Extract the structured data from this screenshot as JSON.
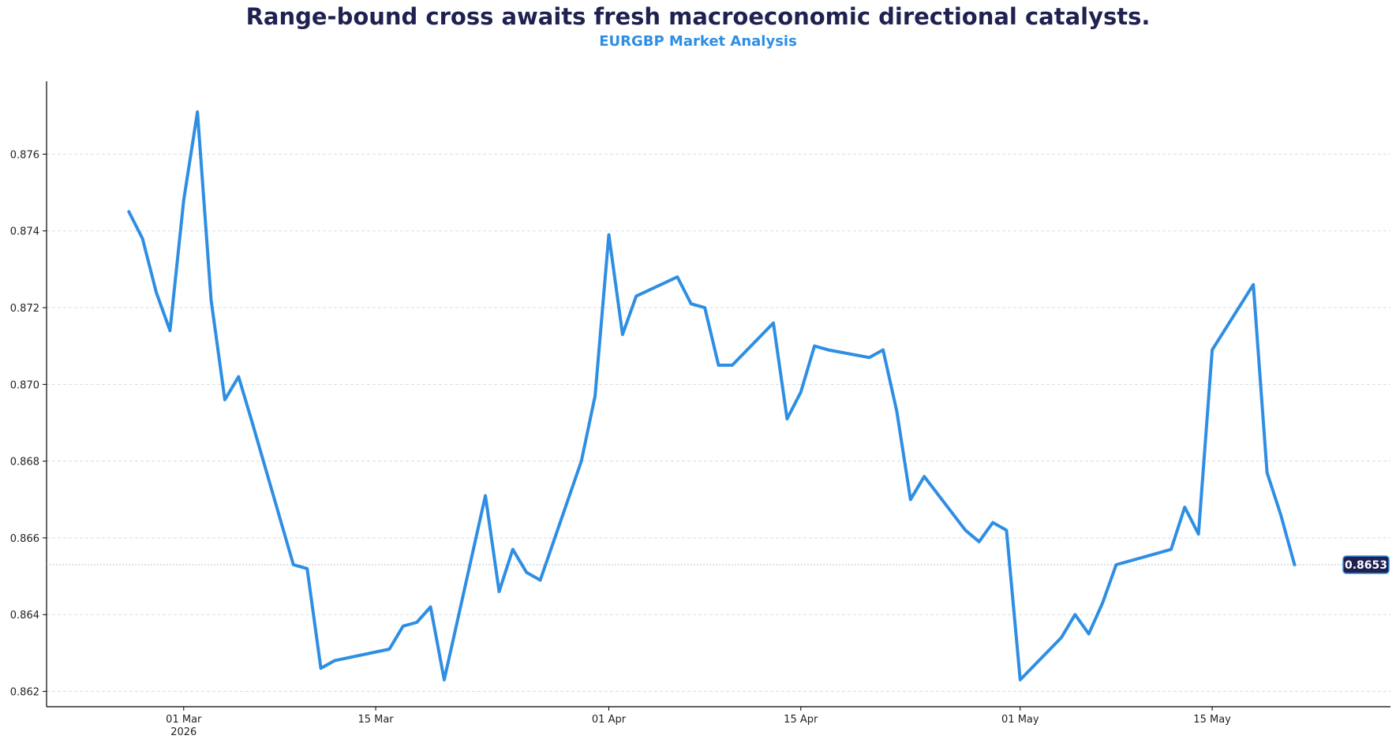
{
  "chart_data": {
    "type": "line",
    "title": "Range-bound cross awaits fresh macroeconomic directional catalysts.",
    "subtitle": "EURGBP Market Analysis",
    "xlabel": "",
    "ylabel": "",
    "xlim": [
      "2026-02-19",
      "2026-05-28"
    ],
    "ylim": [
      0.8616,
      0.8779
    ],
    "grid": {
      "y": true,
      "x": false
    },
    "y_ticks": [
      "0.862",
      "0.864",
      "0.866",
      "0.868",
      "0.870",
      "0.872",
      "0.874",
      "0.876"
    ],
    "x_ticks": [
      {
        "date": "2026-03-01",
        "label": "01 Mar",
        "sublabel": "2026"
      },
      {
        "date": "2026-03-15",
        "label": "15 Mar",
        "sublabel": ""
      },
      {
        "date": "2026-04-01",
        "label": "01 Apr",
        "sublabel": ""
      },
      {
        "date": "2026-04-15",
        "label": "15 Apr",
        "sublabel": ""
      },
      {
        "date": "2026-05-01",
        "label": "01 May",
        "sublabel": ""
      },
      {
        "date": "2026-05-15",
        "label": "15 May",
        "sublabel": ""
      }
    ],
    "last_value_label": "0.8653",
    "colors": {
      "line": "#2e8ee3",
      "badge": "#1f2150",
      "title": "#1f2150",
      "subtitle": "#2e8ee3"
    },
    "series": [
      {
        "x": [
          "2026-02-25",
          "2026-02-26",
          "2026-02-27",
          "2026-02-28",
          "2026-03-01",
          "2026-03-02",
          "2026-03-03",
          "2026-03-04",
          "2026-03-05",
          "2026-03-06",
          "2026-03-09",
          "2026-03-10",
          "2026-03-11",
          "2026-03-12",
          "2026-03-16",
          "2026-03-17",
          "2026-03-18",
          "2026-03-19",
          "2026-03-20",
          "2026-03-23",
          "2026-03-24",
          "2026-03-25",
          "2026-03-26",
          "2026-03-27",
          "2026-03-30",
          "2026-03-31",
          "2026-04-01",
          "2026-04-02",
          "2026-04-03",
          "2026-04-06",
          "2026-04-07",
          "2026-04-08",
          "2026-04-09",
          "2026-04-10",
          "2026-04-13",
          "2026-04-14",
          "2026-04-15",
          "2026-04-16",
          "2026-04-17",
          "2026-04-20",
          "2026-04-21",
          "2026-04-22",
          "2026-04-23",
          "2026-04-24",
          "2026-04-27",
          "2026-04-28",
          "2026-04-29",
          "2026-04-30",
          "2026-05-01",
          "2026-05-04",
          "2026-05-05",
          "2026-05-06",
          "2026-05-07",
          "2026-05-08",
          "2026-05-11",
          "2026-05-12",
          "2026-05-13",
          "2026-05-14",
          "2026-05-15",
          "2026-05-18",
          "2026-05-19",
          "2026-05-20",
          "2026-05-21"
        ],
        "values": [
          0.8745,
          0.8738,
          0.8724,
          0.8714,
          0.8748,
          0.8771,
          0.8722,
          0.8696,
          0.8702,
          0.869,
          0.8653,
          0.8652,
          0.8626,
          0.8628,
          0.8631,
          0.8637,
          0.8638,
          0.8642,
          0.8623,
          0.8671,
          0.8646,
          0.8657,
          0.8651,
          0.8649,
          0.868,
          0.8697,
          0.8739,
          0.8713,
          0.8723,
          0.8728,
          0.8721,
          0.872,
          0.8705,
          0.8705,
          0.8716,
          0.8691,
          0.8698,
          0.871,
          0.8709,
          0.8707,
          0.8709,
          0.8693,
          0.867,
          0.8676,
          0.8662,
          0.8659,
          0.8664,
          0.8662,
          0.8623,
          0.8634,
          0.864,
          0.8635,
          0.8643,
          0.8653,
          0.8656,
          0.8657,
          0.8668,
          0.8661,
          0.8709,
          0.8726,
          0.8677,
          0.8666,
          0.8653
        ]
      }
    ]
  }
}
